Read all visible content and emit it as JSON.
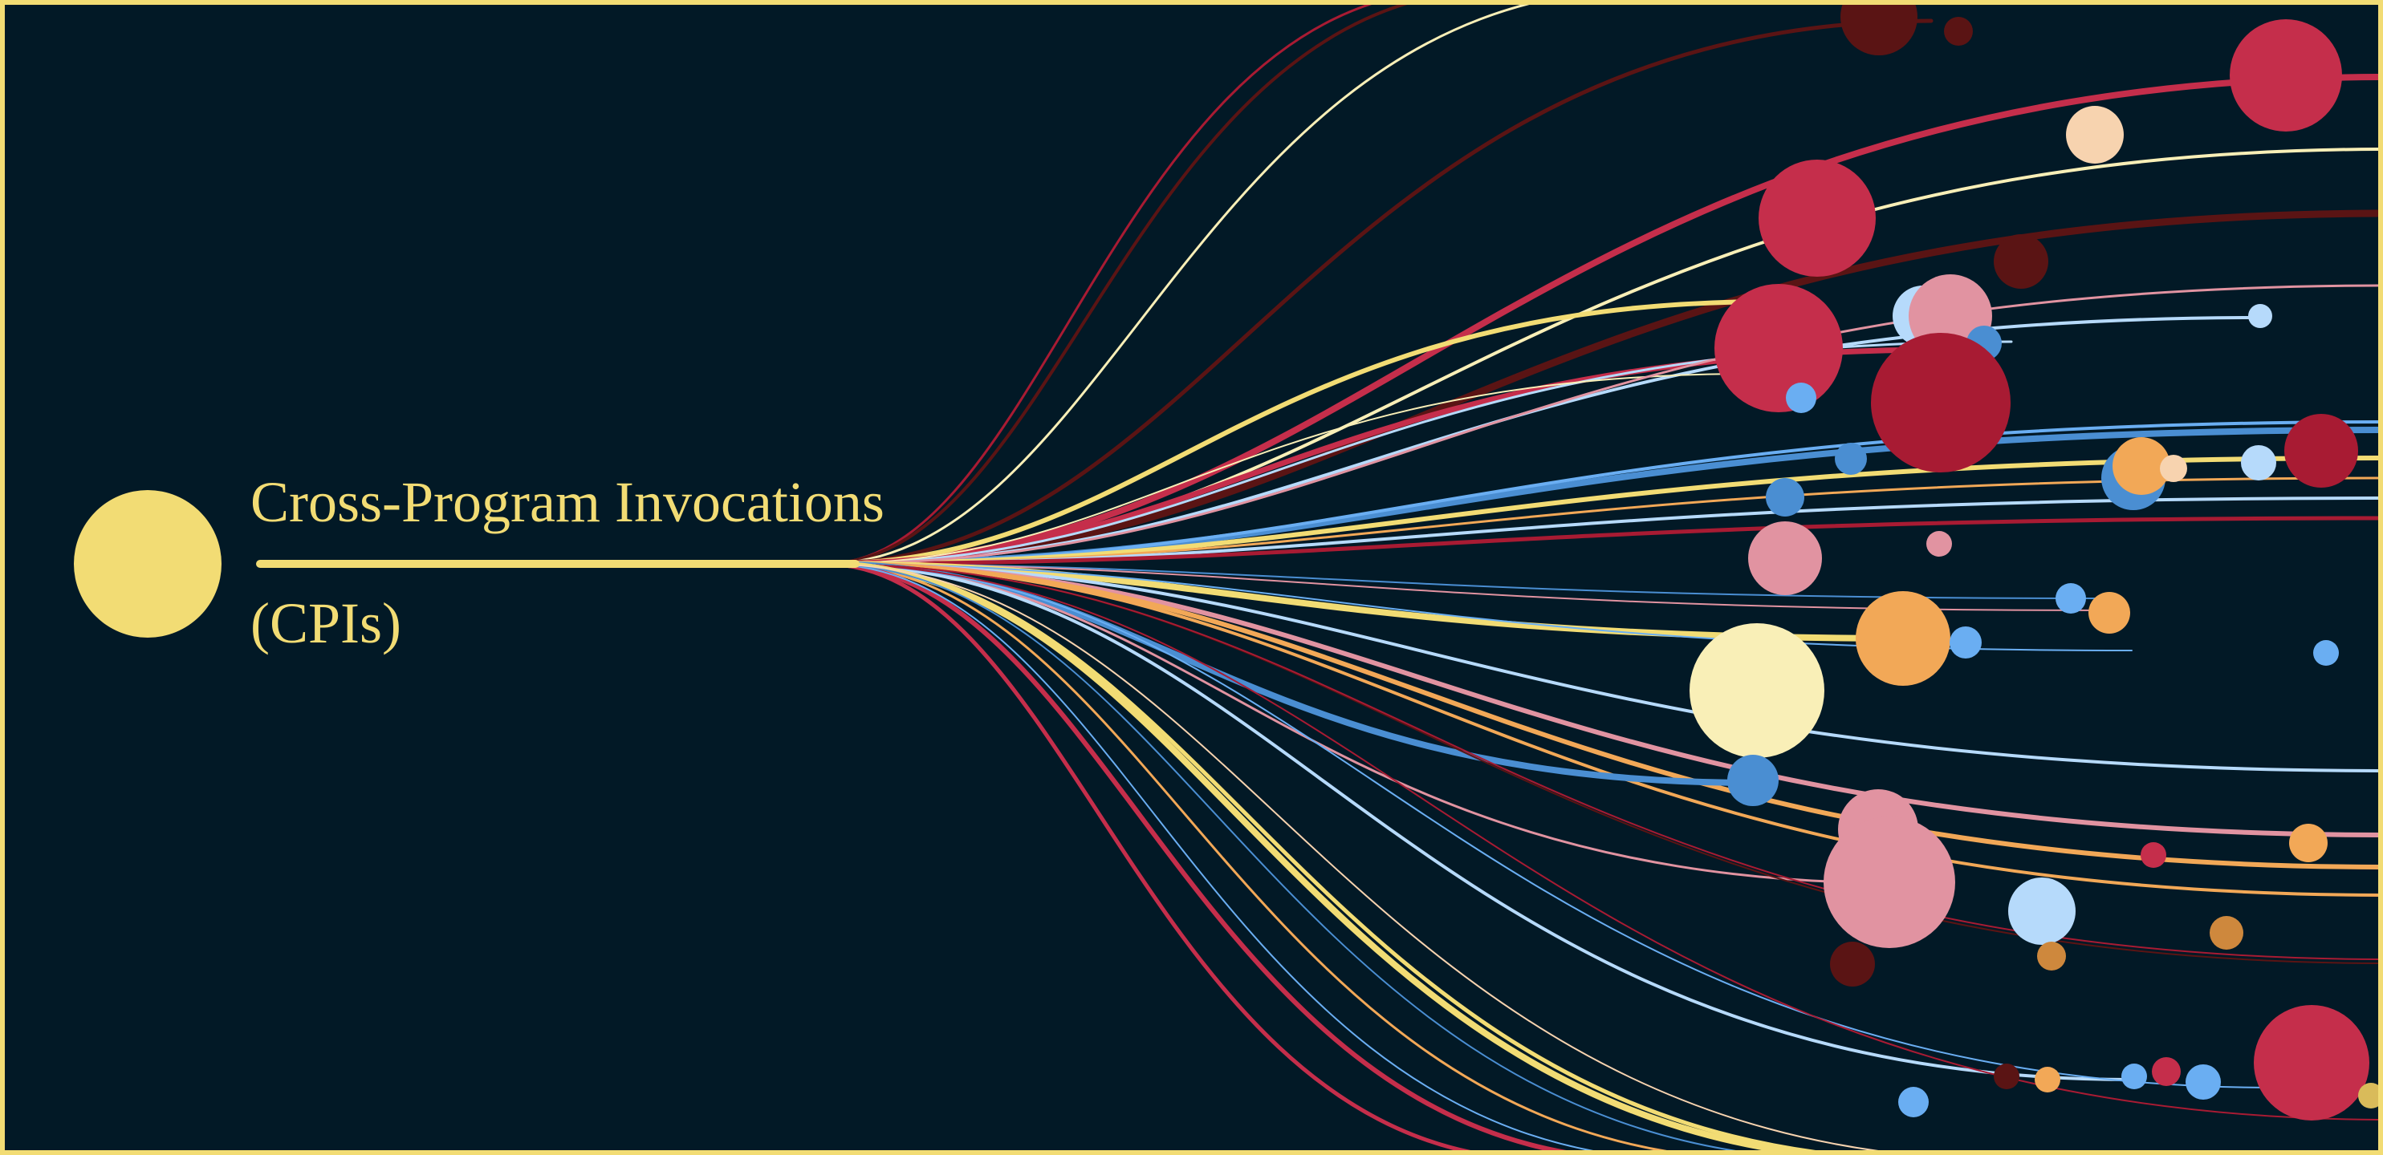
{
  "title": {
    "line1": "Cross-Program Invocations",
    "line2": "(CPIs)"
  },
  "colors": {
    "background": "#021926",
    "frame": "#F2DC74",
    "palette": [
      "#F2DC74",
      "#C52E4B",
      "#A81B33",
      "#5A1414",
      "#F9EFB7",
      "#F7D3AF",
      "#F2A857",
      "#E193A1",
      "#4A8ED2",
      "#6AAEF2",
      "#B6DAFB",
      "#CE883D",
      "#D9BB5A"
    ]
  }
}
